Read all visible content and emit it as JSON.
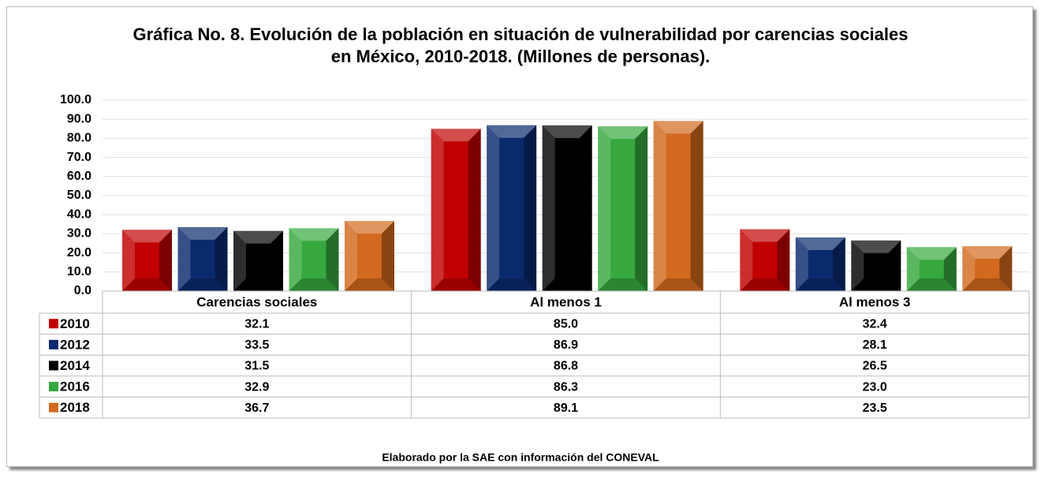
{
  "chart_data": {
    "type": "bar",
    "title": "Gráfica No. 8. Evolución de la población en situación de vulnerabilidad por carencias sociales en México, 2010-2018. (Millones de personas).",
    "categories": [
      "Carencias sociales",
      "Al menos 1",
      "Al menos 3"
    ],
    "series": [
      {
        "name": "2010",
        "color": "#c00000",
        "values": [
          32.1,
          85,
          32.4
        ],
        "value_labels": [
          "32.1",
          "85.0",
          "32.4"
        ]
      },
      {
        "name": "2012",
        "color": "#0a2a6e",
        "values": [
          33.5,
          86.9,
          28.1
        ],
        "value_labels": [
          "33.5",
          "86.9",
          "28.1"
        ]
      },
      {
        "name": "2014",
        "color": "#000000",
        "values": [
          31.5,
          86.8,
          26.5
        ],
        "value_labels": [
          "31.5",
          "86.8",
          "26.5"
        ]
      },
      {
        "name": "2016",
        "color": "#36a83e",
        "values": [
          32.9,
          86.3,
          23
        ],
        "value_labels": [
          "32.9",
          "86.3",
          "23.0"
        ]
      },
      {
        "name": "2018",
        "color": "#d2691e",
        "values": [
          36.7,
          89.1,
          23.5
        ],
        "value_labels": [
          "36.7",
          "89.1",
          "23.5"
        ]
      }
    ],
    "ylim": [
      0,
      100
    ],
    "yticks": [
      {
        "value": 0,
        "label": "0.0"
      },
      {
        "value": 10,
        "label": "10.0"
      },
      {
        "value": 20,
        "label": "20.0"
      },
      {
        "value": 30,
        "label": "30.0"
      },
      {
        "value": 40,
        "label": "40.0"
      },
      {
        "value": 50,
        "label": "50.0"
      },
      {
        "value": 60,
        "label": "60.0"
      },
      {
        "value": 70,
        "label": "70.0"
      },
      {
        "value": 80,
        "label": "80.0"
      },
      {
        "value": 90,
        "label": "90.0"
      },
      {
        "value": 100,
        "label": "100.0"
      }
    ],
    "grid": true,
    "source": "Elaborado por la SAE con información del CONEVAL"
  }
}
